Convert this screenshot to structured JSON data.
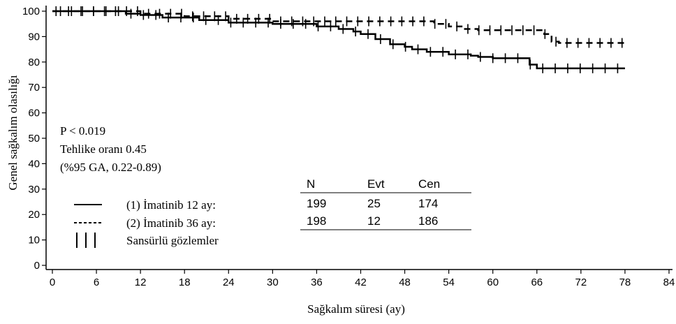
{
  "chart_data": {
    "type": "line",
    "title": "",
    "xlabel": "Sağkalım süresi (ay)",
    "ylabel": "Genel sağkalım olasılığı",
    "xlim": [
      0,
      84
    ],
    "ylim": [
      0,
      100
    ],
    "xticks": [
      "0",
      "6",
      "12",
      "18",
      "24",
      "30",
      "36",
      "42",
      "48",
      "54",
      "60",
      "66",
      "72",
      "78",
      "84"
    ],
    "yticks": [
      "0",
      "10",
      "20",
      "30",
      "40",
      "50",
      "60",
      "70",
      "80",
      "90",
      "100"
    ],
    "grid": false,
    "series": [
      {
        "name": "(1) İmatinib 12 ay:",
        "style": "solid",
        "points": [
          [
            0,
            100
          ],
          [
            10,
            99
          ],
          [
            12,
            98.5
          ],
          [
            15,
            97.5
          ],
          [
            20,
            96.5
          ],
          [
            24,
            95.5
          ],
          [
            30,
            95
          ],
          [
            36,
            94
          ],
          [
            39,
            93
          ],
          [
            41,
            92
          ],
          [
            42,
            91
          ],
          [
            44,
            89
          ],
          [
            46,
            87
          ],
          [
            48,
            86
          ],
          [
            49,
            85
          ],
          [
            51,
            84
          ],
          [
            54,
            83
          ],
          [
            57,
            82.5
          ],
          [
            58,
            82
          ],
          [
            60,
            81.5
          ],
          [
            64,
            81.5
          ],
          [
            65,
            79
          ],
          [
            66,
            77.5
          ],
          [
            78,
            77.5
          ]
        ]
      },
      {
        "name": "(2) İmatinib 36 ay:",
        "style": "dashed",
        "points": [
          [
            0,
            100
          ],
          [
            12,
            99
          ],
          [
            18,
            98
          ],
          [
            24,
            97
          ],
          [
            30,
            96
          ],
          [
            40,
            96
          ],
          [
            48,
            96
          ],
          [
            52,
            95
          ],
          [
            54,
            94
          ],
          [
            56,
            93
          ],
          [
            58,
            92.5
          ],
          [
            66,
            92.5
          ],
          [
            67,
            91
          ],
          [
            68,
            88
          ],
          [
            69,
            87.5
          ],
          [
            78,
            87.5
          ]
        ]
      }
    ],
    "annotations": {
      "p_value": "P < 0.019",
      "hazard_ratio": "Tehlike oranı 0.45",
      "ci": "(%95 GA, 0.22-0.89)"
    },
    "legend": {
      "placement": "bottom-left",
      "entries": [
        {
          "symbol": "—",
          "label": "(1) İmatinib 12 ay:"
        },
        {
          "symbol": "-----",
          "label": "(2) İmatinib 36 ay:"
        },
        {
          "symbol": "| | |",
          "label": "Sansürlü gözlemler"
        }
      ]
    },
    "table": {
      "headers": [
        "N",
        "Evt",
        "Cen"
      ],
      "rows": [
        [
          "199",
          "25",
          "174"
        ],
        [
          "198",
          "12",
          "186"
        ]
      ]
    }
  }
}
